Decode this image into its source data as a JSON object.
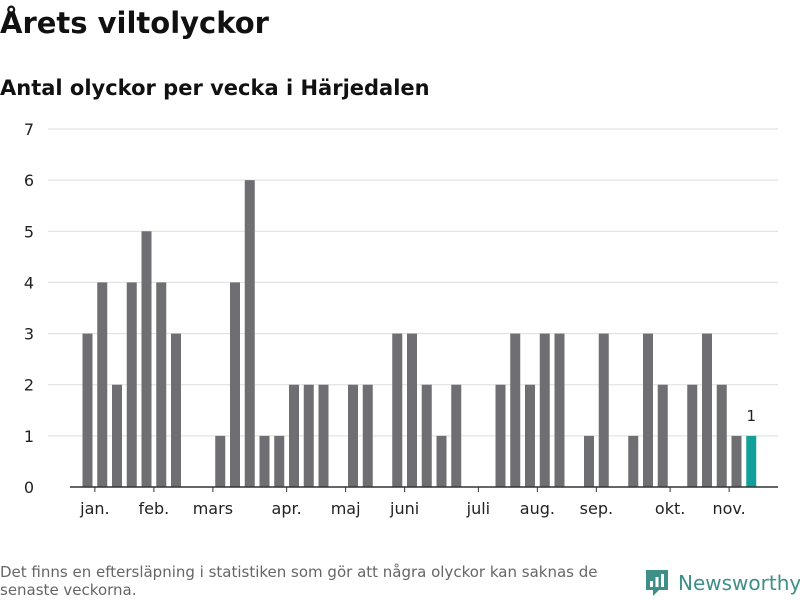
{
  "title": "Årets viltolyckor",
  "subtitle": "Antal olyckor per vecka i Härjedalen",
  "footnote": "Det finns en eftersläpning i statistiken som gör att några olyckor kan saknas de senaste veckorna.",
  "brand": {
    "name": "Newsworthy",
    "icon": "bar-chart-speech-bubble-icon"
  },
  "colors": {
    "bar": "#6f6e73",
    "highlight": "#13a09a",
    "grid": "#dddddd",
    "axis": "#333333",
    "brand": "#3d8f87"
  },
  "chart_data": {
    "type": "bar",
    "weeks": [
      1,
      2,
      3,
      4,
      5,
      6,
      7,
      8,
      9,
      10,
      11,
      12,
      13,
      14,
      15,
      16,
      17,
      18,
      19,
      20,
      21,
      22,
      23,
      24,
      25,
      26,
      27,
      28,
      29,
      30,
      31,
      32,
      33,
      34,
      35,
      36,
      37,
      38,
      39,
      40,
      41,
      42,
      43,
      44,
      45,
      46
    ],
    "values": [
      3,
      4,
      2,
      4,
      5,
      4,
      3,
      0,
      0,
      1,
      4,
      6,
      1,
      1,
      2,
      2,
      2,
      0,
      2,
      2,
      0,
      3,
      3,
      2,
      1,
      2,
      0,
      0,
      2,
      3,
      2,
      3,
      3,
      0,
      1,
      3,
      0,
      1,
      3,
      2,
      0,
      2,
      3,
      2,
      1,
      1
    ],
    "highlight": {
      "week": 46,
      "label": "1"
    },
    "month_labels": [
      {
        "label": "jan.",
        "week": 1.5
      },
      {
        "label": "feb.",
        "week": 5.5
      },
      {
        "label": "mars",
        "week": 9.5
      },
      {
        "label": "apr.",
        "week": 14.5
      },
      {
        "label": "maj",
        "week": 18.5
      },
      {
        "label": "juni",
        "week": 22.5
      },
      {
        "label": "juli",
        "week": 27.5
      },
      {
        "label": "aug.",
        "week": 31.5
      },
      {
        "label": "sep.",
        "week": 35.5
      },
      {
        "label": "okt.",
        "week": 40.5
      },
      {
        "label": "nov.",
        "week": 44.5
      }
    ],
    "yticks": [
      0,
      1,
      2,
      3,
      4,
      5,
      6,
      7
    ],
    "ylim": [
      0,
      7
    ],
    "grid": true
  }
}
